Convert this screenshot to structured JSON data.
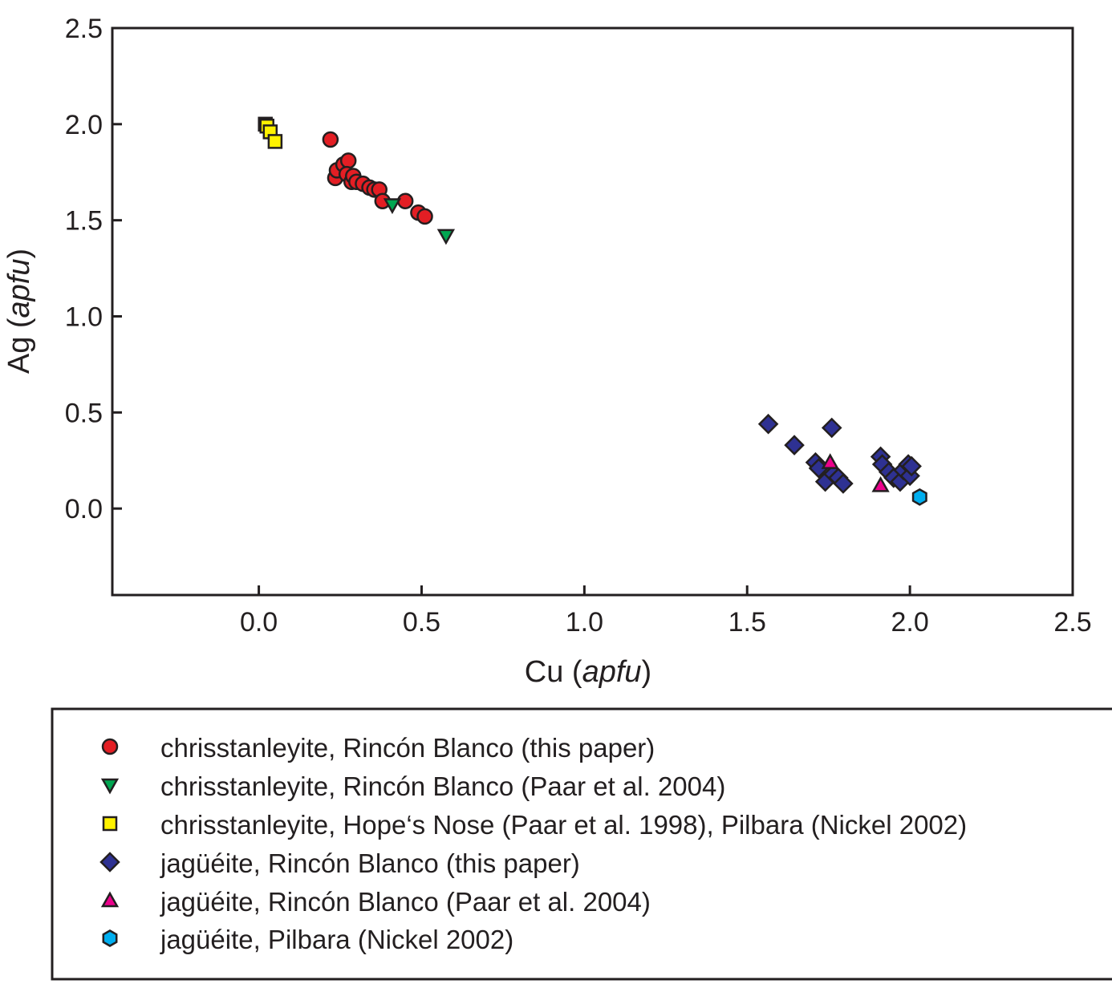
{
  "chart_data": {
    "type": "scatter",
    "xlabel": {
      "main": "Cu",
      "unit": "apfu"
    },
    "ylabel": {
      "main": "Ag",
      "unit": "apfu"
    },
    "xlim": [
      -0.45,
      2.5
    ],
    "ylim": [
      -0.45,
      2.5
    ],
    "xticks": [
      "0.0",
      "0.5",
      "1.0",
      "1.5",
      "2.0",
      "2.5"
    ],
    "yticks": [
      "0.0",
      "0.5",
      "1.0",
      "1.5",
      "2.0",
      "2.5"
    ],
    "grid": false,
    "legend_position": "below",
    "series": [
      {
        "name": "chrisstanleyite, Rincón Blanco (this paper)",
        "marker": "circle",
        "color": "#e31e24",
        "points": [
          [
            0.22,
            1.92
          ],
          [
            0.235,
            1.72
          ],
          [
            0.24,
            1.76
          ],
          [
            0.26,
            1.79
          ],
          [
            0.275,
            1.81
          ],
          [
            0.27,
            1.74
          ],
          [
            0.285,
            1.7
          ],
          [
            0.29,
            1.73
          ],
          [
            0.3,
            1.7
          ],
          [
            0.32,
            1.69
          ],
          [
            0.34,
            1.67
          ],
          [
            0.355,
            1.66
          ],
          [
            0.37,
            1.66
          ],
          [
            0.38,
            1.6
          ],
          [
            0.45,
            1.6
          ],
          [
            0.49,
            1.54
          ],
          [
            0.51,
            1.52
          ]
        ]
      },
      {
        "name": "chrisstanleyite, Rincón Blanco (Paar et al. 2004)",
        "marker": "triangle-down",
        "color": "#00a651",
        "points": [
          [
            0.41,
            1.58
          ],
          [
            0.575,
            1.42
          ]
        ]
      },
      {
        "name": "chrisstanleyite, Hope‘s Nose (Paar et al. 1998), Pilbara (Nickel 2002)",
        "marker": "square",
        "color": "#fff200",
        "points": [
          [
            0.02,
            2.0
          ],
          [
            0.025,
            1.99
          ],
          [
            0.035,
            1.96
          ],
          [
            0.05,
            1.91
          ]
        ]
      },
      {
        "name": "jagüéite, Rincón Blanco (this paper)",
        "marker": "diamond",
        "color": "#2e3192",
        "points": [
          [
            1.565,
            0.44
          ],
          [
            1.645,
            0.33
          ],
          [
            1.71,
            0.24
          ],
          [
            1.72,
            0.21
          ],
          [
            1.74,
            0.14
          ],
          [
            1.76,
            0.42
          ],
          [
            1.765,
            0.18
          ],
          [
            1.78,
            0.16
          ],
          [
            1.795,
            0.13
          ],
          [
            1.91,
            0.27
          ],
          [
            1.915,
            0.23
          ],
          [
            1.935,
            0.19
          ],
          [
            1.95,
            0.16
          ],
          [
            1.97,
            0.14
          ],
          [
            1.98,
            0.2
          ],
          [
            1.995,
            0.23
          ],
          [
            2.0,
            0.17
          ],
          [
            2.005,
            0.22
          ]
        ]
      },
      {
        "name": "jagüéite, Rincón Blanco (Paar et al. 2004)",
        "marker": "triangle-up",
        "color": "#ec008c",
        "points": [
          [
            1.755,
            0.24
          ],
          [
            1.91,
            0.12
          ]
        ]
      },
      {
        "name": "jagüéite, Pilbara (Nickel 2002)",
        "marker": "hexagon",
        "color": "#00aeef",
        "points": [
          [
            2.03,
            0.06
          ]
        ]
      }
    ]
  }
}
